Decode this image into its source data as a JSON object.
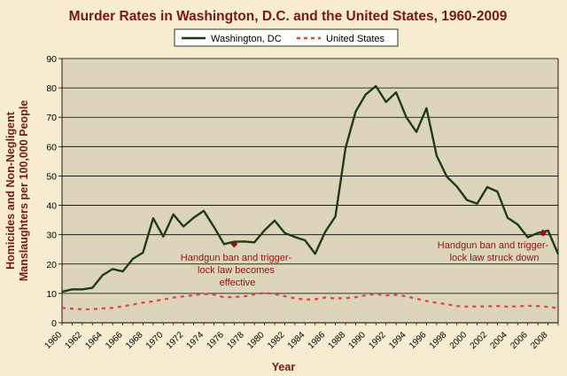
{
  "chart_data": {
    "type": "line",
    "title": "Murder Rates in Washington, D.C. and the United States, 1960-2009",
    "xlabel": "Year",
    "ylabel": "Homicides and Non-Negligent Manslaughters per 100,000 People",
    "xlim": [
      1960,
      2009
    ],
    "ylim": [
      0,
      90
    ],
    "y_ticks": [
      0,
      10,
      20,
      30,
      40,
      50,
      60,
      70,
      80,
      90
    ],
    "x_ticks": [
      1960,
      1962,
      1964,
      1966,
      1968,
      1970,
      1972,
      1974,
      1976,
      1978,
      1980,
      1982,
      1984,
      1986,
      1988,
      1990,
      1992,
      1994,
      1996,
      1998,
      2000,
      2002,
      2004,
      2006,
      2008
    ],
    "grid": "horizontal",
    "legend_position": "top",
    "plot_background": "#dcd5b9",
    "x": [
      1960,
      1961,
      1962,
      1963,
      1964,
      1965,
      1966,
      1967,
      1968,
      1969,
      1970,
      1971,
      1972,
      1973,
      1974,
      1975,
      1976,
      1977,
      1978,
      1979,
      1980,
      1981,
      1982,
      1983,
      1984,
      1985,
      1986,
      1987,
      1988,
      1989,
      1990,
      1991,
      1992,
      1993,
      1994,
      1995,
      1996,
      1997,
      1998,
      1999,
      2000,
      2001,
      2002,
      2003,
      2004,
      2005,
      2006,
      2007,
      2008,
      2009
    ],
    "series": [
      {
        "name": "Washington, DC",
        "color": "#1e3d16",
        "style": "solid",
        "values": [
          10.6,
          11.4,
          11.4,
          11.9,
          16.2,
          18.3,
          17.5,
          21.8,
          23.9,
          35.6,
          29.4,
          36.9,
          32.8,
          35.8,
          38.1,
          32.7,
          26.8,
          27.6,
          27.7,
          27.4,
          31.5,
          34.8,
          30.6,
          29.2,
          28.1,
          23.5,
          31.0,
          36.2,
          59.5,
          71.9,
          77.8,
          80.6,
          75.2,
          78.5,
          70.0,
          65.0,
          73.1,
          56.9,
          49.8,
          46.4,
          41.8,
          40.6,
          46.2,
          44.7,
          35.8,
          33.5,
          29.1,
          30.6,
          31.4,
          23.4
        ]
      },
      {
        "name": "United States",
        "color": "#e5413b",
        "style": "dashed",
        "values": [
          5.1,
          4.8,
          4.6,
          4.6,
          4.9,
          5.1,
          5.6,
          6.2,
          6.9,
          7.3,
          7.9,
          8.6,
          9.0,
          9.4,
          9.8,
          9.6,
          8.7,
          8.8,
          9.0,
          9.7,
          10.2,
          9.8,
          9.1,
          8.3,
          7.9,
          8.0,
          8.6,
          8.3,
          8.4,
          8.7,
          9.4,
          9.8,
          9.3,
          9.5,
          9.0,
          8.2,
          7.4,
          6.8,
          6.3,
          5.7,
          5.5,
          5.6,
          5.6,
          5.7,
          5.5,
          5.6,
          5.8,
          5.7,
          5.4,
          5.0
        ]
      }
    ],
    "annotations": [
      {
        "text_lines": [
          "Handgun ban and trigger-",
          "lock law becomes",
          "effective"
        ],
        "x": 1977,
        "y": 26.8,
        "color": "#8b1515"
      },
      {
        "text_lines": [
          "Handgun ban and trigger-",
          "lock law struck down"
        ],
        "x": 2007.5,
        "y": 30.6,
        "color": "#8b1515"
      }
    ]
  }
}
